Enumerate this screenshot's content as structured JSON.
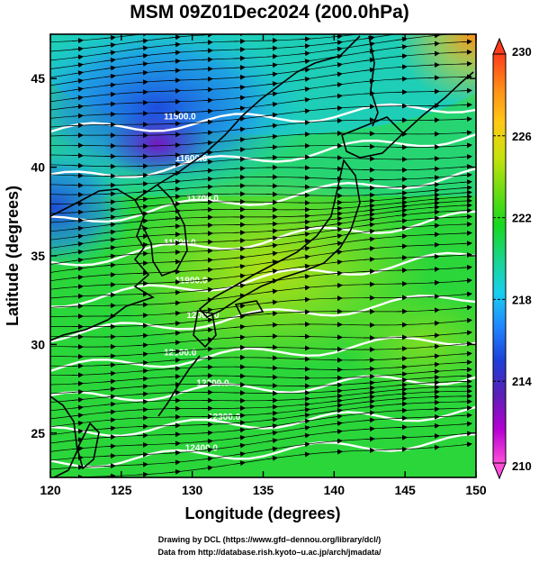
{
  "title": "MSM 09Z01Dec2024 (200.0hPa)",
  "chart_data": {
    "type": "heatmap",
    "title": "MSM 09Z01Dec2024 (200.0hPa)",
    "xlabel": "Longitude (degrees)",
    "ylabel": "Latitude  (degrees)",
    "xlim": [
      120,
      150
    ],
    "ylim": [
      22.5,
      47.5
    ],
    "x_ticks": [
      "120",
      "125",
      "130",
      "135",
      "140",
      "145",
      "150"
    ],
    "y_ticks": [
      "25",
      "30",
      "35",
      "40",
      "45"
    ],
    "colorbar": {
      "min": 210,
      "max": 230,
      "tick_labels": [
        "210",
        "214",
        "218",
        "222",
        "226",
        "230"
      ],
      "colors": [
        "#ff4fd8",
        "#b400d2",
        "#5a1fb5",
        "#1e3fd8",
        "#1f86ff",
        "#18d0ee",
        "#19d58b",
        "#17d81e",
        "#6fdc12",
        "#c8e20e",
        "#ffc816",
        "#ff8c16",
        "#ff3c1c"
      ]
    },
    "contours": [
      {
        "label": "11500.0",
        "lat_at_120": 42.0,
        "lat_at_150": 43.5
      },
      {
        "label": "11600.0",
        "lat_at_120": 39.3,
        "lat_at_150": 41.8
      },
      {
        "label": "11700.0",
        "lat_at_120": 36.9,
        "lat_at_150": 39.6
      },
      {
        "label": "11800.0",
        "lat_at_120": 34.6,
        "lat_at_150": 37.2
      },
      {
        "label": "11900.0",
        "lat_at_120": 32.4,
        "lat_at_150": 35.0
      },
      {
        "label": "12000.0",
        "lat_at_120": 30.5,
        "lat_at_150": 32.7
      },
      {
        "label": "12100.0",
        "lat_at_120": 28.6,
        "lat_at_150": 30.4
      },
      {
        "label": "12200.0",
        "lat_at_120": 26.9,
        "lat_at_150": 28.2
      },
      {
        "label": "12300.0",
        "lat_at_120": 25.0,
        "lat_at_150": 26.2
      },
      {
        "label": "12400.0",
        "lat_at_120": 23.3,
        "lat_at_150": 24.6
      }
    ]
  },
  "credits": {
    "line1": "Drawing by DCL (https://www.gfd–dennou.org/library/dcl/)",
    "line2": "Data from http://database.rish.kyoto–u.ac.jp/arch/jmadata/"
  }
}
